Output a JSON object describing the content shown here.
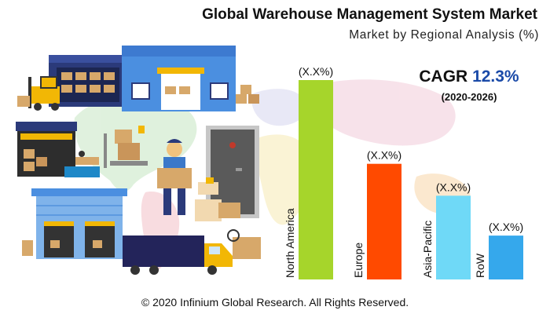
{
  "title": "Global Warehouse Management System Market",
  "subtitle": "Market by Regional Analysis (%)",
  "cagr": {
    "label": "CAGR",
    "value": "12.3%",
    "period": "(2020-2026)"
  },
  "copyright": "© 2020 Infinium Global Research. All Rights Reserved.",
  "colors": {
    "north_america": "#a6d52b",
    "europe": "#ff4a00",
    "asia_pacific": "#6fd9f7",
    "row": "#35a8ec",
    "cagr_value": "#1a4aa8"
  },
  "chart_data": {
    "type": "bar",
    "title": "Global Warehouse Management System Market",
    "subtitle": "Market by Regional Analysis (%)",
    "categories": [
      "North America",
      "Europe",
      "Asia-Pacific",
      "RoW"
    ],
    "values": [
      100,
      58,
      42,
      22
    ],
    "data_labels": [
      "(X.X%)",
      "(X.X%)",
      "(X.X%)",
      "(X.X%)"
    ],
    "bar_colors": [
      "#a6d52b",
      "#ff4a00",
      "#6fd9f7",
      "#35a8ec"
    ],
    "ylim": [
      0,
      100
    ],
    "grid": false,
    "category_labels_orientation": "vertical"
  }
}
